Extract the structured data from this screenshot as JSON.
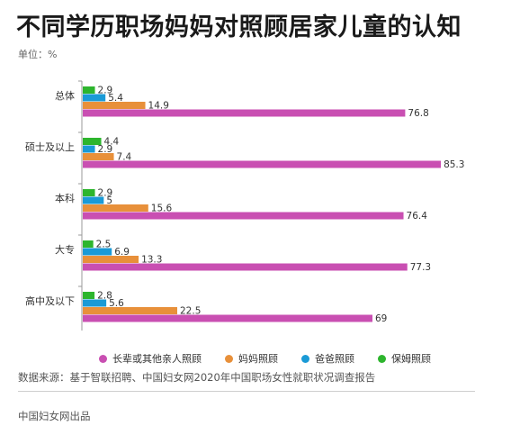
{
  "title": "不同学历职场妈妈对照顾居家儿童的认知",
  "unit": "单位：%",
  "source": "数据来源：基于智联招聘、中国妇女网2020年中国职场女性就职状况调查报告",
  "publisher": "中国妇女网出品",
  "chart_data": {
    "type": "bar",
    "orientation": "horizontal",
    "categories": [
      "总体",
      "硕士及以上",
      "本科",
      "大专",
      "高中及以下"
    ],
    "series": [
      {
        "name": "保姆照顾",
        "color": "#2db52d",
        "values": [
          2.9,
          4.4,
          2.9,
          2.5,
          2.8
        ]
      },
      {
        "name": "爸爸照顾",
        "color": "#1a9ad6",
        "values": [
          5.4,
          2.9,
          5.0,
          6.9,
          5.6
        ]
      },
      {
        "name": "妈妈照顾",
        "color": "#e8903a",
        "values": [
          14.9,
          7.4,
          15.6,
          13.3,
          22.5
        ]
      },
      {
        "name": "长辈或其他亲人照顾",
        "color": "#c94fb2",
        "values": [
          76.8,
          85.3,
          76.4,
          77.3,
          69
        ]
      }
    ],
    "xlim": [
      0,
      90
    ],
    "grid": false,
    "legend_position": "bottom"
  },
  "legend_order": [
    "长辈或其他亲人照顾",
    "妈妈照顾",
    "爸爸照顾",
    "保姆照顾"
  ]
}
